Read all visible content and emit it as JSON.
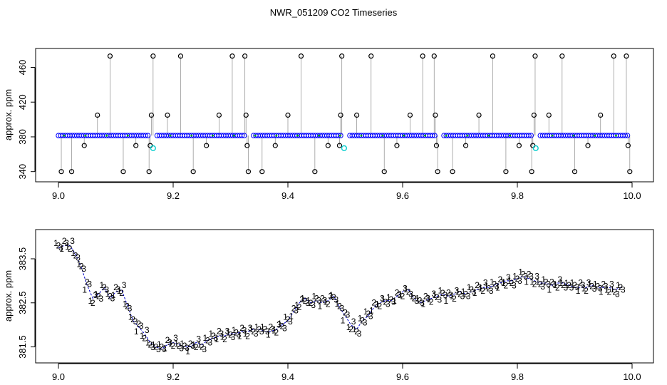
{
  "title": "NWR_051209  CO2 Timeseries",
  "chart_data": [
    {
      "type": "scatter",
      "title": "NWR_051209  CO2 Timeseries",
      "xlabel": "",
      "ylabel": "approx. ppm",
      "xlim": [
        9.0,
        10.0
      ],
      "ylim": [
        334,
        476
      ],
      "xticks": [
        9.0,
        9.2,
        9.4,
        9.6,
        9.8,
        10.0
      ],
      "xtick_labels": [
        "9.0",
        "9.2",
        "9.4",
        "9.6",
        "9.8",
        "10.0"
      ],
      "yticks": [
        340,
        380,
        420,
        460
      ],
      "ytick_labels": [
        "340",
        "380",
        "420",
        "460"
      ],
      "grid": false,
      "colors": {
        "baseline": "#0000ff",
        "spikes": "#000000",
        "calibration": "#00cccc",
        "lines": "#999999"
      },
      "baseline": {
        "x_start": 9.0,
        "x_end": 9.995,
        "y": 381.5,
        "gaps": [
          9.165,
          9.33,
          9.5,
          9.665,
          9.83
        ]
      },
      "spikes": [
        {
          "x": 9.005,
          "y": 340
        },
        {
          "x": 9.023,
          "y": 340
        },
        {
          "x": 9.045,
          "y": 370
        },
        {
          "x": 9.068,
          "y": 405
        },
        {
          "x": 9.09,
          "y": 473
        },
        {
          "x": 9.113,
          "y": 340
        },
        {
          "x": 9.135,
          "y": 370
        },
        {
          "x": 9.158,
          "y": 340
        },
        {
          "x": 9.16,
          "y": 370
        },
        {
          "x": 9.162,
          "y": 405
        },
        {
          "x": 9.165,
          "y": 473
        },
        {
          "x": 9.19,
          "y": 405
        },
        {
          "x": 9.213,
          "y": 473
        },
        {
          "x": 9.235,
          "y": 340
        },
        {
          "x": 9.258,
          "y": 370
        },
        {
          "x": 9.28,
          "y": 405
        },
        {
          "x": 9.303,
          "y": 473
        },
        {
          "x": 9.325,
          "y": 473
        },
        {
          "x": 9.327,
          "y": 405
        },
        {
          "x": 9.329,
          "y": 370
        },
        {
          "x": 9.331,
          "y": 340
        },
        {
          "x": 9.355,
          "y": 340
        },
        {
          "x": 9.378,
          "y": 370
        },
        {
          "x": 9.4,
          "y": 405
        },
        {
          "x": 9.423,
          "y": 473
        },
        {
          "x": 9.447,
          "y": 340
        },
        {
          "x": 9.47,
          "y": 370
        },
        {
          "x": 9.49,
          "y": 370
        },
        {
          "x": 9.492,
          "y": 405
        },
        {
          "x": 9.494,
          "y": 473
        },
        {
          "x": 9.52,
          "y": 405
        },
        {
          "x": 9.545,
          "y": 473
        },
        {
          "x": 9.568,
          "y": 340
        },
        {
          "x": 9.59,
          "y": 370
        },
        {
          "x": 9.613,
          "y": 405
        },
        {
          "x": 9.635,
          "y": 473
        },
        {
          "x": 9.655,
          "y": 473
        },
        {
          "x": 9.657,
          "y": 405
        },
        {
          "x": 9.659,
          "y": 370
        },
        {
          "x": 9.661,
          "y": 340
        },
        {
          "x": 9.687,
          "y": 340
        },
        {
          "x": 9.71,
          "y": 370
        },
        {
          "x": 9.733,
          "y": 405
        },
        {
          "x": 9.757,
          "y": 473
        },
        {
          "x": 9.78,
          "y": 340
        },
        {
          "x": 9.803,
          "y": 370
        },
        {
          "x": 9.825,
          "y": 340
        },
        {
          "x": 9.827,
          "y": 370
        },
        {
          "x": 9.829,
          "y": 405
        },
        {
          "x": 9.831,
          "y": 473
        },
        {
          "x": 9.855,
          "y": 405
        },
        {
          "x": 9.878,
          "y": 473
        },
        {
          "x": 9.9,
          "y": 340
        },
        {
          "x": 9.923,
          "y": 370
        },
        {
          "x": 9.945,
          "y": 405
        },
        {
          "x": 9.968,
          "y": 473
        },
        {
          "x": 9.99,
          "y": 473
        },
        {
          "x": 9.993,
          "y": 370
        },
        {
          "x": 9.996,
          "y": 340
        }
      ],
      "calibration_points": [
        {
          "x": 9.165,
          "y": 367
        },
        {
          "x": 9.498,
          "y": 367
        },
        {
          "x": 9.832,
          "y": 367
        }
      ]
    },
    {
      "type": "scatter",
      "xlabel": "",
      "ylabel": "approx. ppm",
      "xlim": [
        9.0,
        10.0
      ],
      "ylim": [
        381.25,
        384.05
      ],
      "xticks": [
        9.0,
        9.2,
        9.4,
        9.6,
        9.8,
        10.0
      ],
      "xtick_labels": [
        "9.0",
        "9.2",
        "9.4",
        "9.6",
        "9.8",
        "10.0"
      ],
      "yticks": [
        381.5,
        382.5,
        383.5
      ],
      "ytick_labels": [
        "381.5",
        "382.5",
        "383.5"
      ],
      "grid": false,
      "marker_labels": [
        "1",
        "2",
        "3"
      ],
      "series_colors": [
        "#cc0000",
        "#00aa00",
        "#0000cc"
      ],
      "trend": [
        [
          9.0,
          383.75
        ],
        [
          9.01,
          383.8
        ],
        [
          9.02,
          383.8
        ],
        [
          9.03,
          383.6
        ],
        [
          9.04,
          383.3
        ],
        [
          9.05,
          382.9
        ],
        [
          9.06,
          382.6
        ],
        [
          9.07,
          382.7
        ],
        [
          9.08,
          382.85
        ],
        [
          9.09,
          382.6
        ],
        [
          9.1,
          382.75
        ],
        [
          9.11,
          382.8
        ],
        [
          9.12,
          382.45
        ],
        [
          9.13,
          382.1
        ],
        [
          9.14,
          381.95
        ],
        [
          9.15,
          381.8
        ],
        [
          9.16,
          381.6
        ],
        [
          9.17,
          381.5
        ],
        [
          9.18,
          381.45
        ],
        [
          9.19,
          381.55
        ],
        [
          9.2,
          381.6
        ],
        [
          9.21,
          381.55
        ],
        [
          9.22,
          381.5
        ],
        [
          9.23,
          381.5
        ],
        [
          9.24,
          381.6
        ],
        [
          9.25,
          381.55
        ],
        [
          9.26,
          381.65
        ],
        [
          9.27,
          381.7
        ],
        [
          9.28,
          381.75
        ],
        [
          9.29,
          381.75
        ],
        [
          9.3,
          381.8
        ],
        [
          9.31,
          381.8
        ],
        [
          9.32,
          381.85
        ],
        [
          9.33,
          381.85
        ],
        [
          9.34,
          381.9
        ],
        [
          9.35,
          381.9
        ],
        [
          9.36,
          381.85
        ],
        [
          9.37,
          381.85
        ],
        [
          9.38,
          381.9
        ],
        [
          9.39,
          382.0
        ],
        [
          9.4,
          382.1
        ],
        [
          9.41,
          382.3
        ],
        [
          9.42,
          382.5
        ],
        [
          9.43,
          382.6
        ],
        [
          9.44,
          382.5
        ],
        [
          9.45,
          382.55
        ],
        [
          9.46,
          382.5
        ],
        [
          9.47,
          382.55
        ],
        [
          9.48,
          382.65
        ],
        [
          9.49,
          382.4
        ],
        [
          9.5,
          382.2
        ],
        [
          9.51,
          382.0
        ],
        [
          9.52,
          381.9
        ],
        [
          9.53,
          382.1
        ],
        [
          9.54,
          382.2
        ],
        [
          9.55,
          382.4
        ],
        [
          9.56,
          382.5
        ],
        [
          9.57,
          382.55
        ],
        [
          9.58,
          382.55
        ],
        [
          9.59,
          382.65
        ],
        [
          9.6,
          382.75
        ],
        [
          9.61,
          382.8
        ],
        [
          9.62,
          382.6
        ],
        [
          9.63,
          382.5
        ],
        [
          9.64,
          382.55
        ],
        [
          9.65,
          382.6
        ],
        [
          9.66,
          382.65
        ],
        [
          9.67,
          382.7
        ],
        [
          9.68,
          382.65
        ],
        [
          9.69,
          382.7
        ],
        [
          9.7,
          382.75
        ],
        [
          9.71,
          382.7
        ],
        [
          9.72,
          382.75
        ],
        [
          9.73,
          382.8
        ],
        [
          9.74,
          382.85
        ],
        [
          9.75,
          382.85
        ],
        [
          9.76,
          382.9
        ],
        [
          9.77,
          382.95
        ],
        [
          9.78,
          383.0
        ],
        [
          9.79,
          383.0
        ],
        [
          9.8,
          383.05
        ],
        [
          9.81,
          383.1
        ],
        [
          9.82,
          383.05
        ],
        [
          9.83,
          383.0
        ],
        [
          9.84,
          382.95
        ],
        [
          9.85,
          382.95
        ],
        [
          9.86,
          382.9
        ],
        [
          9.87,
          382.95
        ],
        [
          9.88,
          382.95
        ],
        [
          9.89,
          382.9
        ],
        [
          9.9,
          382.85
        ],
        [
          9.91,
          382.85
        ],
        [
          9.92,
          382.85
        ],
        [
          9.93,
          382.9
        ],
        [
          9.94,
          382.85
        ],
        [
          9.95,
          382.85
        ],
        [
          9.96,
          382.85
        ],
        [
          9.97,
          382.8
        ],
        [
          9.98,
          382.85
        ]
      ]
    }
  ]
}
